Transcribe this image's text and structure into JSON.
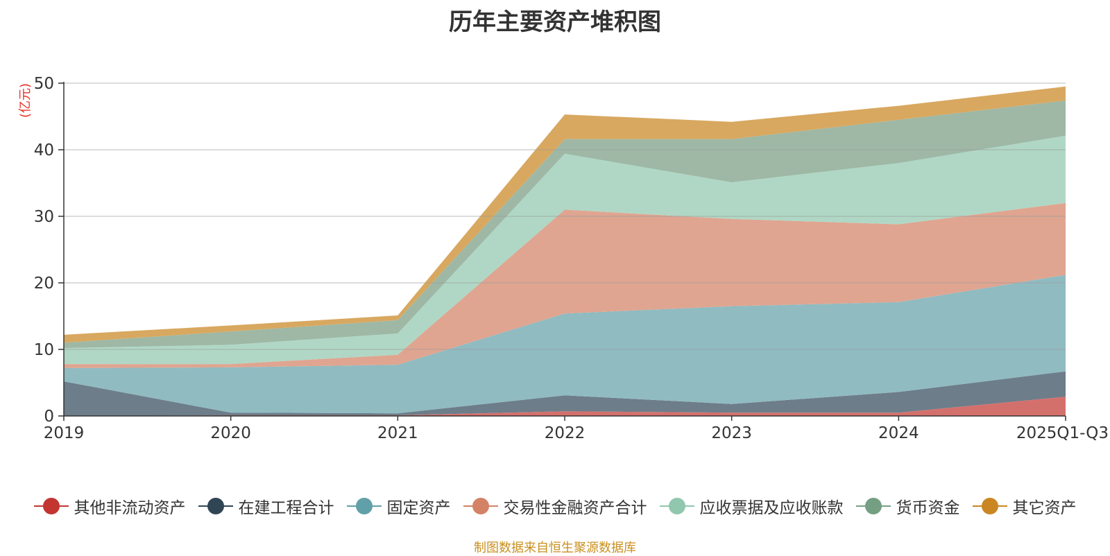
{
  "chart_data": {
    "type": "area",
    "stacked": true,
    "title": "历年主要资产堆积图",
    "ylabel": "(亿元)",
    "ylim": [
      0,
      50
    ],
    "yticks": [
      0,
      10,
      20,
      30,
      40,
      50
    ],
    "categories": [
      "2019",
      "2020",
      "2021",
      "2022",
      "2023",
      "2024",
      "2025Q1-Q3"
    ],
    "series": [
      {
        "name": "其他非流动资产",
        "color": "#c23531",
        "fill": "#d4706c",
        "values": [
          0.0,
          0.1,
          0.1,
          0.7,
          0.5,
          0.5,
          2.9
        ]
      },
      {
        "name": "在建工程合计",
        "color": "#2f4554",
        "fill": "#6d7d8a",
        "values": [
          5.2,
          0.4,
          0.3,
          2.4,
          1.3,
          3.1,
          3.8
        ]
      },
      {
        "name": "固定资产",
        "color": "#61a0a8",
        "fill": "#90bbc1",
        "values": [
          2.0,
          6.8,
          7.3,
          12.3,
          14.7,
          13.5,
          14.5
        ]
      },
      {
        "name": "交易性金融资产合计",
        "color": "#d48265",
        "fill": "#dfa590",
        "values": [
          0.6,
          0.5,
          1.5,
          15.6,
          13.1,
          11.7,
          10.8
        ]
      },
      {
        "name": "应收票据及应收账款",
        "color": "#91c7ae",
        "fill": "#b0d7c5",
        "values": [
          2.4,
          2.9,
          3.2,
          8.4,
          5.5,
          9.2,
          10.1
        ]
      },
      {
        "name": "货币资金",
        "color": "#749f83",
        "fill": "#9eb8a5",
        "values": [
          0.8,
          2.0,
          2.0,
          2.2,
          6.5,
          6.5,
          5.3
        ]
      },
      {
        "name": "其它资产",
        "color": "#ca8622",
        "fill": "#d8a860",
        "values": [
          1.2,
          0.9,
          0.7,
          3.7,
          2.6,
          2.1,
          2.1
        ]
      }
    ]
  },
  "footer": {
    "source": "制图数据来自恒生聚源数据库"
  }
}
